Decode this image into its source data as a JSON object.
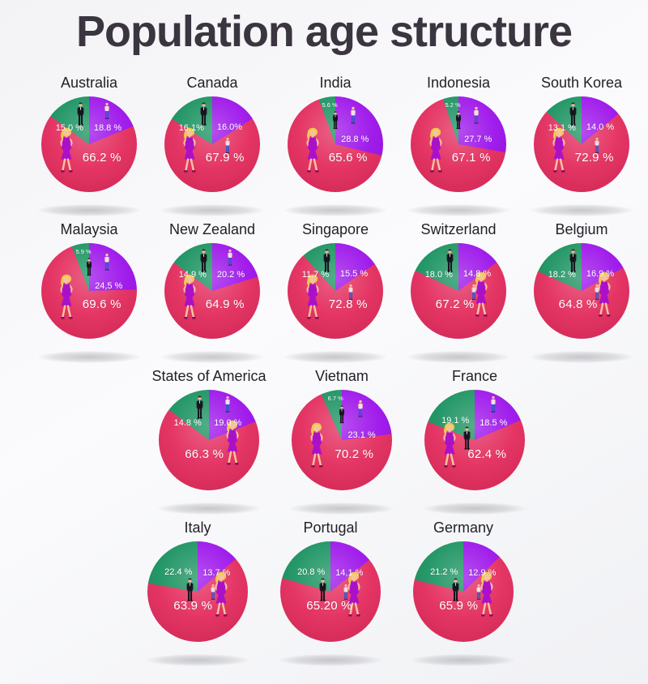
{
  "title": "Population age structure",
  "colors": {
    "green": "#18915F",
    "green_dark": "#0F8176",
    "purple": "#9B10EA",
    "purple_light": "#B01FF5",
    "pink": "#E32B5C",
    "pink_dark": "#C91747",
    "background": "#F3F3F5",
    "title_text": "#3B3540",
    "country_text": "#232028",
    "label_text": "#FFFFFF"
  },
  "icons": {
    "green_slice_figure": "man-in-suit-icon",
    "purple_slice_figure": "young-person-icon",
    "pink_slice_figure": "woman-icon"
  },
  "rows": [
    [
      0,
      1,
      2,
      3,
      4
    ],
    [
      5,
      6,
      7,
      8,
      9
    ],
    [
      10,
      11,
      12
    ],
    [
      13,
      14,
      15
    ]
  ],
  "chart_data": [
    {
      "type": "pie",
      "title": "Australia",
      "woman_side": "left",
      "slices": [
        {
          "color_key": "green",
          "label": "15.0 %",
          "value": 15.0
        },
        {
          "color_key": "purple",
          "label": "18.8 %",
          "value": 18.8
        },
        {
          "color_key": "pink",
          "label": "66.2 %",
          "value": 66.2
        }
      ]
    },
    {
      "type": "pie",
      "title": "Canada",
      "woman_side": "left",
      "slices": [
        {
          "color_key": "green",
          "label": "16.1%",
          "value": 16.1
        },
        {
          "color_key": "purple",
          "label": "16.0%",
          "value": 16.0
        },
        {
          "color_key": "pink",
          "label": "67.9 %",
          "value": 67.9
        }
      ]
    },
    {
      "type": "pie",
      "title": "India",
      "woman_side": "left",
      "slices": [
        {
          "color_key": "green",
          "label": "5.6 %",
          "value": 5.6
        },
        {
          "color_key": "purple",
          "label": "28.8 %",
          "value": 28.8
        },
        {
          "color_key": "pink",
          "label": "65.6 %",
          "value": 65.6
        }
      ]
    },
    {
      "type": "pie",
      "title": "Indonesia",
      "woman_side": "left",
      "slices": [
        {
          "color_key": "green",
          "label": "5.2 %",
          "value": 5.2
        },
        {
          "color_key": "purple",
          "label": "27.7 %",
          "value": 27.7
        },
        {
          "color_key": "pink",
          "label": "67.1 %",
          "value": 67.1
        }
      ]
    },
    {
      "type": "pie",
      "title": "South Korea",
      "woman_side": "left",
      "slices": [
        {
          "color_key": "green",
          "label": "13.1 %",
          "value": 13.1
        },
        {
          "color_key": "purple",
          "label": "14.0 %",
          "value": 14.0
        },
        {
          "color_key": "pink",
          "label": "72.9 %",
          "value": 72.9
        }
      ]
    },
    {
      "type": "pie",
      "title": "Malaysia",
      "woman_side": "left",
      "slices": [
        {
          "color_key": "green",
          "label": "5.9 %",
          "value": 5.9
        },
        {
          "color_key": "purple",
          "label": "24,5 %",
          "value": 24.5
        },
        {
          "color_key": "pink",
          "label": "69.6 %",
          "value": 69.6
        }
      ]
    },
    {
      "type": "pie",
      "title": "New Zealand",
      "woman_side": "left",
      "slices": [
        {
          "color_key": "green",
          "label": "14.9 %",
          "value": 14.9
        },
        {
          "color_key": "purple",
          "label": "20.2 %",
          "value": 20.2
        },
        {
          "color_key": "pink",
          "label": "64.9 %",
          "value": 64.9
        }
      ]
    },
    {
      "type": "pie",
      "title": "Singapore",
      "woman_side": "left",
      "slices": [
        {
          "color_key": "green",
          "label": "11.7 %",
          "value": 11.7
        },
        {
          "color_key": "purple",
          "label": "15.5 %",
          "value": 15.5
        },
        {
          "color_key": "pink",
          "label": "72.8 %",
          "value": 72.8
        }
      ]
    },
    {
      "type": "pie",
      "title": "Switzerland",
      "woman_side": "right",
      "slices": [
        {
          "color_key": "green",
          "label": "18.0 %",
          "value": 18.0
        },
        {
          "color_key": "purple",
          "label": "14.8 %",
          "value": 14.8
        },
        {
          "color_key": "pink",
          "label": "67.2 %",
          "value": 67.2
        }
      ]
    },
    {
      "type": "pie",
      "title": "Belgium",
      "woman_side": "right",
      "slices": [
        {
          "color_key": "green",
          "label": "18.2 %",
          "value": 18.2
        },
        {
          "color_key": "purple",
          "label": "16.9 %",
          "value": 16.9
        },
        {
          "color_key": "pink",
          "label": "64.8 %",
          "value": 64.8
        }
      ]
    },
    {
      "type": "pie",
      "title": "States of America",
      "woman_side": "right",
      "slices": [
        {
          "color_key": "green",
          "label": "14.8 %",
          "value": 14.8
        },
        {
          "color_key": "purple",
          "label": "19.0 %",
          "value": 19.0
        },
        {
          "color_key": "pink",
          "label": "66.3 %",
          "value": 66.3
        }
      ]
    },
    {
      "type": "pie",
      "title": "Vietnam",
      "woman_side": "left",
      "slices": [
        {
          "color_key": "green",
          "label": "6.7 %",
          "value": 6.7
        },
        {
          "color_key": "purple",
          "label": "23.1 %",
          "value": 23.1
        },
        {
          "color_key": "pink",
          "label": "70.2 %",
          "value": 70.2
        }
      ]
    },
    {
      "type": "pie",
      "title": "France",
      "woman_side": "left",
      "slices": [
        {
          "color_key": "green",
          "label": "19.1 %",
          "value": 19.1
        },
        {
          "color_key": "purple",
          "label": "18.5 %",
          "value": 18.5
        },
        {
          "color_key": "pink",
          "label": "62.4 %",
          "value": 62.4
        }
      ]
    },
    {
      "type": "pie",
      "title": "Italy",
      "woman_side": "right",
      "slices": [
        {
          "color_key": "green",
          "label": "22.4 %",
          "value": 22.4
        },
        {
          "color_key": "purple",
          "label": "13.7 %",
          "value": 13.7
        },
        {
          "color_key": "pink",
          "label": "63.9 %",
          "value": 63.9
        }
      ]
    },
    {
      "type": "pie",
      "title": "Portugal",
      "woman_side": "right",
      "slices": [
        {
          "color_key": "green",
          "label": "20.8 %",
          "value": 20.8
        },
        {
          "color_key": "purple",
          "label": "14,1 %",
          "value": 14.1
        },
        {
          "color_key": "pink",
          "label": "65.20 %",
          "value": 65.2
        }
      ]
    },
    {
      "type": "pie",
      "title": "Germany",
      "woman_side": "right",
      "slices": [
        {
          "color_key": "green",
          "label": "21.2 %",
          "value": 21.2
        },
        {
          "color_key": "purple",
          "label": "12.9 %",
          "value": 12.9
        },
        {
          "color_key": "pink",
          "label": "65.9 %",
          "value": 65.9
        }
      ]
    }
  ]
}
